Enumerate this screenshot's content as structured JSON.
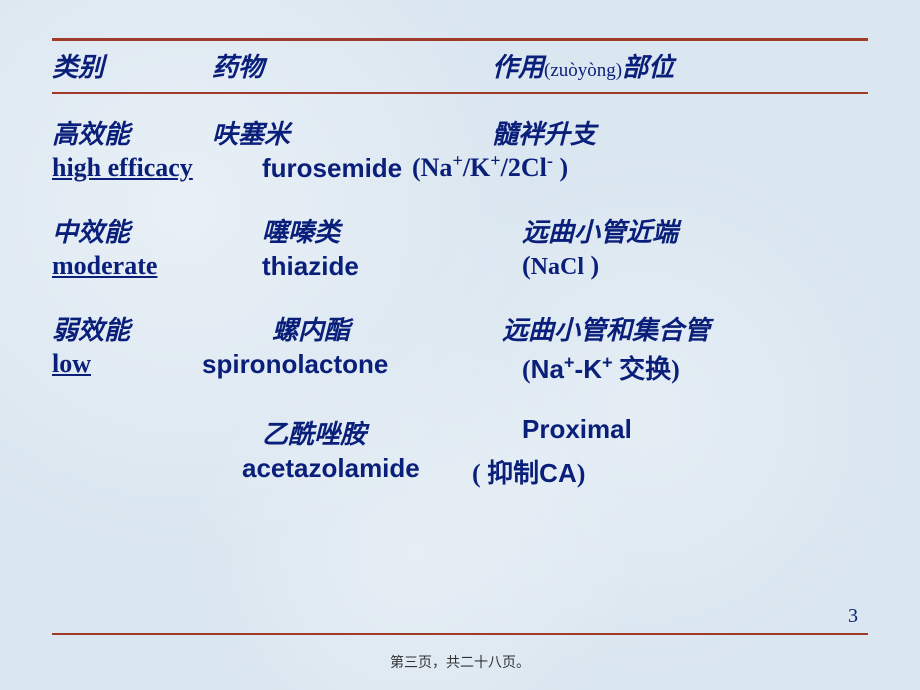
{
  "colors": {
    "text": "#0a1f7a",
    "rule": "#a03b2a",
    "background": "#dae6f0"
  },
  "typography": {
    "body_fontsize": 26,
    "footer_fontsize": 14,
    "pagenum_fontsize": 20
  },
  "header": {
    "col1": "类别",
    "col2": "药物",
    "col3_pre": "作用",
    "col3_pinyin": "(zuòyòng)",
    "col3_post": "部位"
  },
  "rows": [
    {
      "zh": {
        "c1": "高效能",
        "c2": "呋塞米",
        "c3": "髓袢升支"
      },
      "en": {
        "c1": "high efficacy",
        "c1_underline": true,
        "c2": "furosemide",
        "c3_html": "(Na<span class='sup'>+</span>/K<span class='sup'>+</span>/2Cl<span class='sup'>-</span> )"
      },
      "layout": {
        "en_c1_w": 210,
        "en_c2_w": 150,
        "zh_c1_w": 160,
        "zh_c2_w": 280
      }
    },
    {
      "zh": {
        "c1": "中效能",
        "c2": "噻嗪类",
        "c3": "远曲小管近端"
      },
      "en": {
        "c1": "moderate",
        "c1_underline": true,
        "c2": "thiazide",
        "c3_html": "(<span class='small-serif'>NaCl</span> )"
      },
      "layout": {
        "en_c1_w": 210,
        "en_c2_w": 260,
        "zh_c1_w": 210,
        "zh_c2_w": 260
      }
    },
    {
      "zh": {
        "c1": "弱效能",
        "c2": "螺内酯",
        "c3": "远曲小管和集合管"
      },
      "en": {
        "c1": "low",
        "c1_underline": true,
        "c2": "spironolactone",
        "c3_html": "(<span class='arial'>Na<span class='sup'>+</span>-K<span class='sup'>+</span></span> 交换)"
      },
      "layout": {
        "en_c1_w": 150,
        "en_c2_w": 320,
        "zh_c1_w": 220,
        "zh_c2_w": 230
      }
    },
    {
      "zh": {
        "c1": "",
        "c2": "乙酰唑胺",
        "c3": "Proximal",
        "c3_arial": true
      },
      "en": {
        "c1": "",
        "c1_underline": false,
        "c2": "acetazolamide",
        "c3_html": "( 抑制<span class='arial'>CA</span>)"
      },
      "layout": {
        "en_c1_w": 190,
        "en_c2_w": 230,
        "zh_c1_w": 210,
        "zh_c2_w": 260
      }
    }
  ],
  "pagenum": "3",
  "footer": "第三页，共二十八页。"
}
